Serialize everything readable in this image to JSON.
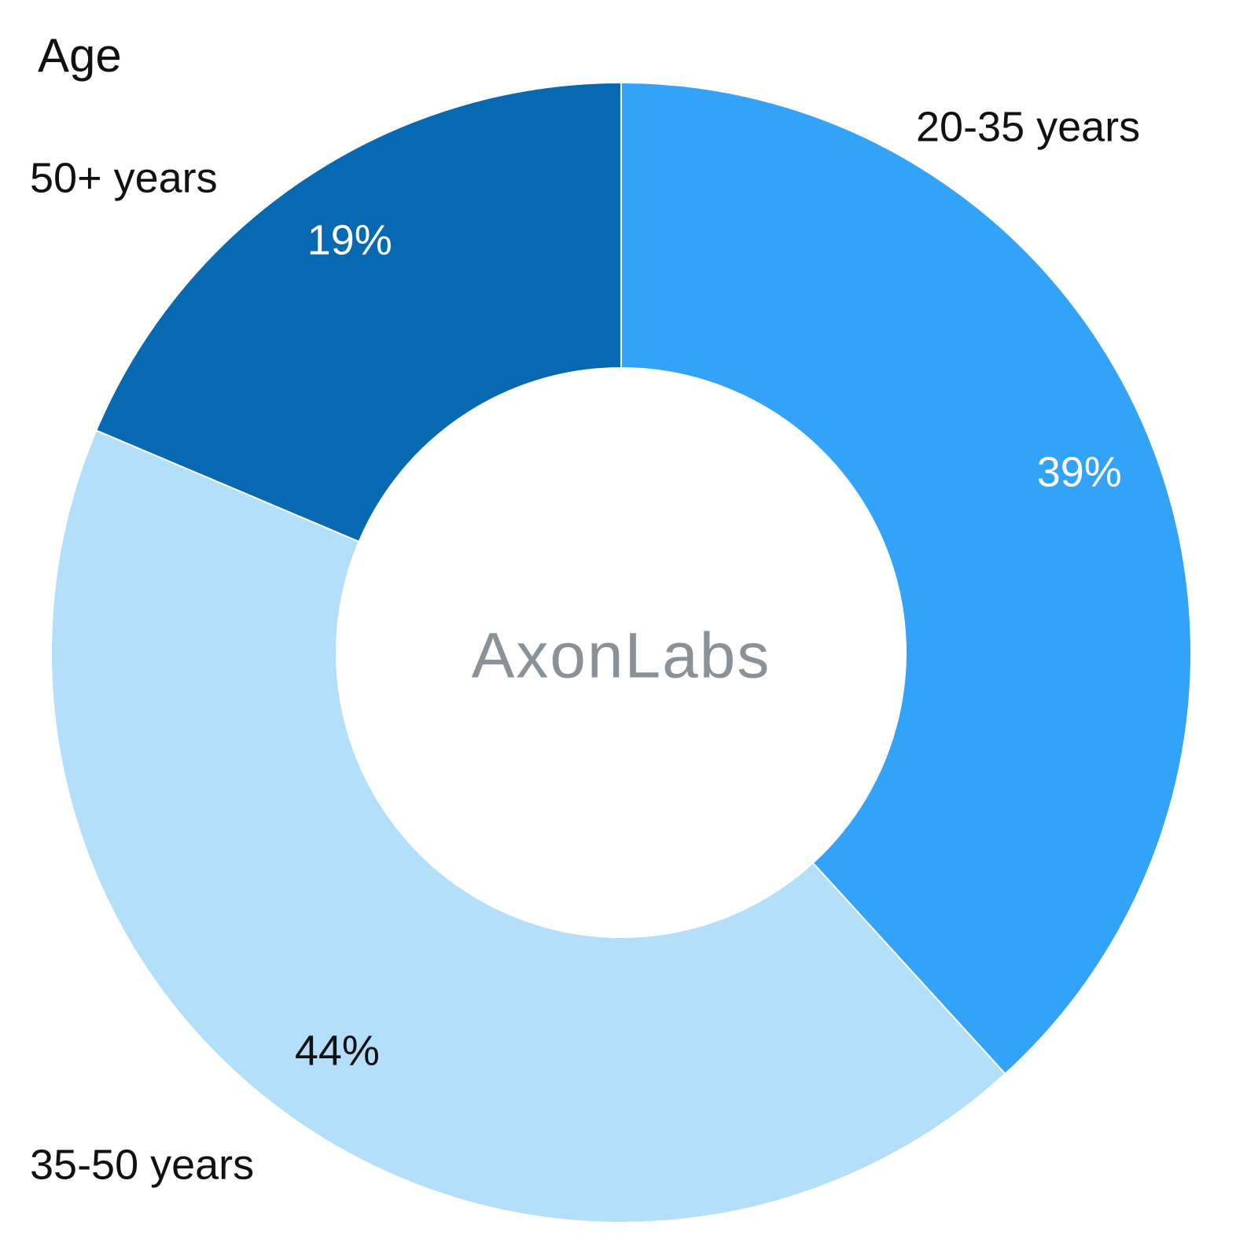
{
  "chart_data": {
    "type": "donut",
    "title": "Age",
    "center_text": "AxonLabs",
    "categories": [
      "20-35 years",
      "35-50 years",
      "50+ years"
    ],
    "values": [
      39,
      44,
      19
    ],
    "value_labels": [
      "39%",
      "44%",
      "19%"
    ],
    "colors": [
      "#33a3fa",
      "#b3dffb",
      "#0769b2"
    ]
  }
}
